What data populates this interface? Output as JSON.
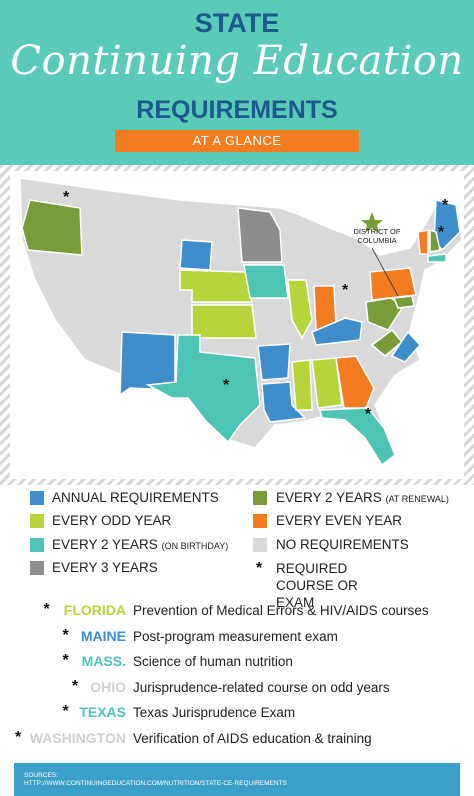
{
  "header": {
    "title_top": "STATE",
    "title_script": "Continuing Education",
    "title_bottom": "REQUIREMENTS",
    "banner": "AT A GLANCE"
  },
  "map": {
    "dc_label": "DISTRICT OF COLUMBIA"
  },
  "legend": {
    "items": [
      {
        "label": "ANNUAL REQUIREMENTS"
      },
      {
        "label": "EVERY 2 YEARS",
        "note": "(AT RENEWAL)"
      },
      {
        "label": "EVERY ODD YEAR"
      },
      {
        "label": "EVERY EVEN YEAR"
      },
      {
        "label": "EVERY 2 YEARS",
        "note": "(ON BIRTHDAY)"
      },
      {
        "label": "NO REQUIREMENTS"
      },
      {
        "label": "EVERY 3 YEARS"
      },
      {
        "label": "REQUIRED COURSE OR EXAM",
        "marker": "*"
      }
    ]
  },
  "notes": [
    {
      "state": "FLORIDA",
      "text": "Prevention of Medical Errors & HIV/AIDS courses"
    },
    {
      "state": "MAINE",
      "text": "Post-program measurement exam"
    },
    {
      "state": "MASS.",
      "text": "Science of human nutrition"
    },
    {
      "state": "OHIO",
      "text": "Jurisprudence-related course on odd years"
    },
    {
      "state": "TEXAS",
      "text": "Texas Jurisprudence Exam"
    },
    {
      "state": "WASHINGTON",
      "text": "Verification of AIDS education & training"
    }
  ],
  "sources": {
    "label": "SOURCES:",
    "url": "HTTP://WWW.CONTINUINGEDUCATION.COM/NUTRITION/STATE-CE-REQUIREMENTS"
  }
}
